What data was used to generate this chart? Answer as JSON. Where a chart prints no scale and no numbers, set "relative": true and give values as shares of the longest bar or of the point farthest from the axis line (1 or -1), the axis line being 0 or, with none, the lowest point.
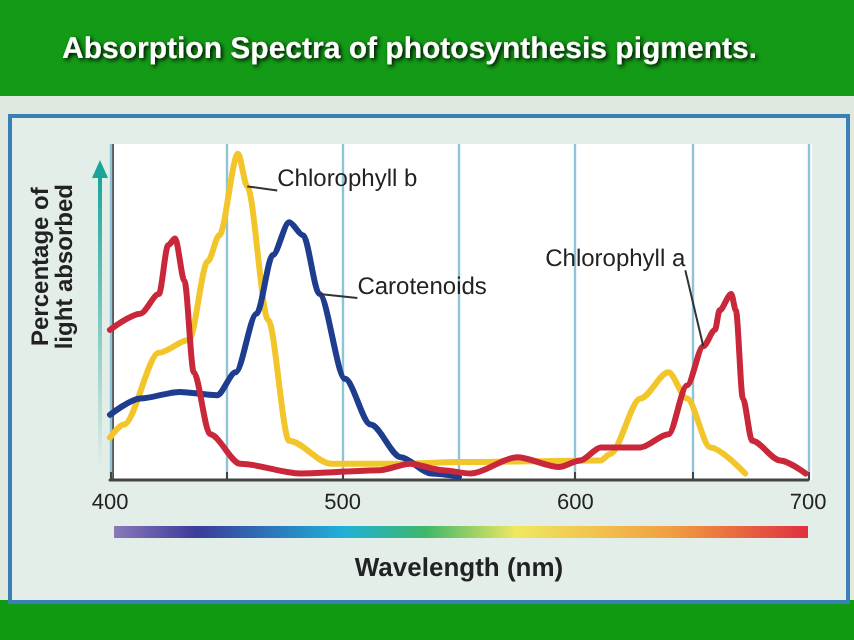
{
  "chart_data": {
    "type": "line",
    "title": "Absorption Spectra of photosynthesis pigments.",
    "xlabel": "Wavelength (nm)",
    "ylabel": "Percentage of light absorbed",
    "relative": true,
    "xlim": [
      400,
      700
    ],
    "xticks": [
      400,
      {
        "value": 450,
        "label": null
      },
      500,
      {
        "value": 550,
        "label": null
      },
      600,
      {
        "value": 650,
        "label": null
      },
      700
    ],
    "grid": "x",
    "legend": false,
    "marker": "none",
    "line_style": "solid",
    "series": [
      {
        "name": "Chlorophyll b",
        "color": "#f2c62a",
        "x": [
          400,
          406,
          421,
          434,
          442,
          447,
          455,
          459,
          468,
          477,
          495,
          525,
          550,
          611,
          615,
          628,
          640,
          648,
          658,
          673
        ],
        "values": [
          0.13,
          0.17,
          0.39,
          0.43,
          0.67,
          0.75,
          1.0,
          0.9,
          0.49,
          0.12,
          0.05,
          0.05,
          0.055,
          0.06,
          0.08,
          0.25,
          0.33,
          0.25,
          0.1,
          0.02
        ]
      },
      {
        "name": "Carotenoids",
        "color": "#1f3d8f",
        "x": [
          400,
          413,
          430,
          446,
          454,
          463,
          470,
          477,
          483,
          490,
          501,
          512,
          525,
          538,
          550
        ],
        "values": [
          0.2,
          0.25,
          0.27,
          0.26,
          0.33,
          0.51,
          0.69,
          0.79,
          0.75,
          0.57,
          0.31,
          0.17,
          0.07,
          0.02,
          0.01
        ]
      },
      {
        "name": "Chlorophyll a",
        "color": "#c8283a",
        "x": [
          400,
          413,
          421,
          425,
          428,
          432,
          436,
          443,
          456,
          482,
          516,
          529,
          543,
          555,
          575,
          593,
          602,
          611,
          628,
          640,
          648,
          655,
          660,
          662,
          667,
          669,
          672,
          676,
          688,
          699
        ],
        "values": [
          0.46,
          0.51,
          0.57,
          0.72,
          0.74,
          0.61,
          0.33,
          0.14,
          0.05,
          0.02,
          0.03,
          0.05,
          0.03,
          0.02,
          0.07,
          0.04,
          0.06,
          0.1,
          0.1,
          0.14,
          0.29,
          0.41,
          0.46,
          0.52,
          0.57,
          0.52,
          0.25,
          0.12,
          0.06,
          0.02
        ]
      }
    ]
  }
}
